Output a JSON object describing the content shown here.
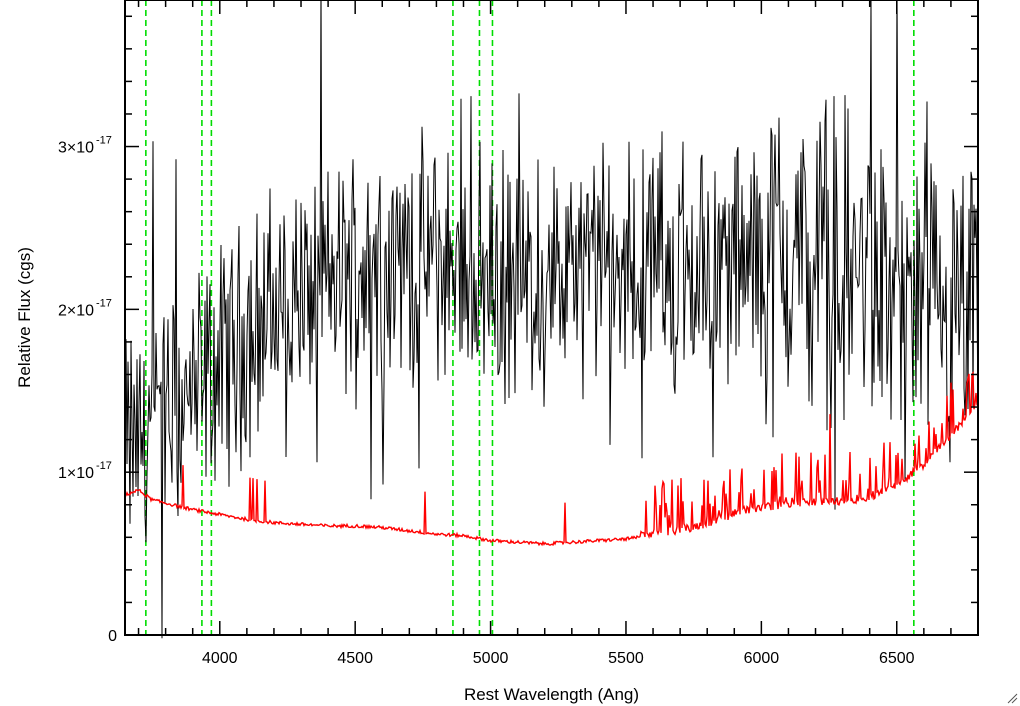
{
  "chart_data": {
    "type": "line",
    "xlabel": "Rest Wavelength (Ang)",
    "ylabel": "Relative Flux (cgs)",
    "xlim": [
      3650,
      6800
    ],
    "ylim": [
      0,
      3.9e-17
    ],
    "x_ticks": [
      {
        "value": 4000,
        "label": "4000"
      },
      {
        "value": 4500,
        "label": "4500"
      },
      {
        "value": 5000,
        "label": "5000"
      },
      {
        "value": 5500,
        "label": "5500"
      },
      {
        "value": 6000,
        "label": "6000"
      },
      {
        "value": 6500,
        "label": "6500"
      }
    ],
    "y_ticks": [
      {
        "value": 0,
        "mantissa": "0",
        "exponent": ""
      },
      {
        "value": 1e-17,
        "mantissa": "1×10",
        "exponent": "-17"
      },
      {
        "value": 2e-17,
        "mantissa": "2×10",
        "exponent": "-17"
      },
      {
        "value": 3e-17,
        "mantissa": "3×10",
        "exponent": "-17"
      }
    ],
    "grid": false,
    "legend": "none",
    "series": [
      {
        "color": "#000000",
        "style": "noisy-spectrum",
        "x": [
          3650,
          3700,
          3750,
          3800,
          3850,
          3900,
          3950,
          4000,
          4050,
          4100,
          4200,
          4300,
          4400,
          4500,
          4600,
          4700,
          4800,
          4900,
          5000,
          5100,
          5200,
          5300,
          5400,
          5500,
          5600,
          5700,
          5800,
          5900,
          6000,
          6100,
          6200,
          6300,
          6400,
          6500,
          6600,
          6700,
          6800
        ],
        "y": [
          1.15e-17,
          1.2e-17,
          1.3e-17,
          1.35e-17,
          1.4e-17,
          1.45e-17,
          1.55e-17,
          1.65e-17,
          1.75e-17,
          1.85e-17,
          2e-17,
          2.1e-17,
          2.15e-17,
          2.25e-17,
          2.3e-17,
          2.3e-17,
          2.3e-17,
          2.25e-17,
          2.2e-17,
          2.15e-17,
          2.15e-17,
          2.2e-17,
          2.25e-17,
          2.25e-17,
          2.3e-17,
          2.3e-17,
          2.25e-17,
          2.3e-17,
          2.3e-17,
          2.35e-17,
          2.3e-17,
          2.25e-17,
          2.2e-17,
          2e-17,
          1.9e-17,
          1.8e-17,
          1.9e-17
        ],
        "scatter_amplitude": 5.5e-18
      },
      {
        "color": "#ff0000",
        "style": "error-spectrum",
        "x": [
          3650,
          3700,
          3750,
          3800,
          3900,
          4000,
          4100,
          4200,
          4300,
          4400,
          4500,
          4600,
          4700,
          4800,
          4900,
          5000,
          5100,
          5200,
          5300,
          5400,
          5500,
          5600,
          5700,
          5800,
          5900,
          6000,
          6100,
          6200,
          6300,
          6400,
          6500,
          6600,
          6700,
          6800
        ],
        "y": [
          8.5e-18,
          8.8e-18,
          8.2e-18,
          8e-18,
          7.6e-18,
          7.3e-18,
          7e-18,
          6.8e-18,
          6.7e-18,
          6.6e-18,
          6.6e-18,
          6.5e-18,
          6.3e-18,
          6.1e-18,
          6e-18,
          5.7e-18,
          5.6e-18,
          5.5e-18,
          5.6e-18,
          5.7e-18,
          5.8e-18,
          6e-18,
          6.2e-18,
          6.6e-18,
          7.2e-18,
          7.6e-18,
          7.8e-18,
          7.9e-18,
          8e-18,
          8.2e-18,
          9e-18,
          1.02e-17,
          1.2e-17,
          1.4e-17
        ]
      }
    ],
    "marker_lines": {
      "color": "#00dd00",
      "style": "dashed",
      "x": [
        3727,
        3934,
        3969,
        4861,
        4959,
        5007,
        6563
      ]
    }
  }
}
